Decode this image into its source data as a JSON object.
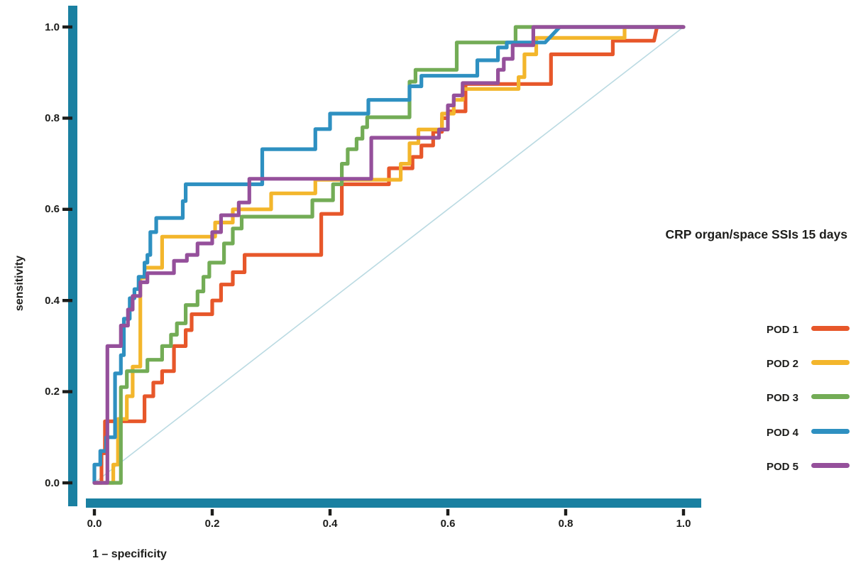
{
  "figure": {
    "title": "CRP organ/space SSIs 15 days",
    "x_axis_label": "1 – specificity",
    "y_axis_label": "sensitivity",
    "axis_color": "#1a80a1",
    "tick_color": "#1d1d1b",
    "text_color": "#1d1d1b",
    "diagonal_color": "#badae2",
    "x_tick_labels": [
      "0.0",
      "0.2",
      "0.4",
      "0.6",
      "0.8",
      "1.0"
    ],
    "y_tick_labels": [
      "1.0",
      "0.8",
      "0.6",
      "0.4",
      "0.2",
      "0.0"
    ]
  },
  "legend": {
    "items": [
      {
        "label": "POD 1",
        "color": "#e7572a"
      },
      {
        "label": "POD 2",
        "color": "#f3b62c"
      },
      {
        "label": "POD 3",
        "color": "#73ac56"
      },
      {
        "label": "POD 4",
        "color": "#2e90c1"
      },
      {
        "label": "POD 5",
        "color": "#95509b"
      }
    ]
  },
  "chart_data": {
    "type": "line",
    "subtype": "roc-step-curves",
    "title": "CRP organ/space SSIs 15 days",
    "xlabel": "1 – specificity",
    "ylabel": "sensitivity",
    "xlim": [
      0,
      1
    ],
    "ylim": [
      0,
      1
    ],
    "x_ticks": [
      0.0,
      0.2,
      0.4,
      0.6,
      0.8,
      1.0
    ],
    "y_ticks": [
      0.0,
      0.2,
      0.4,
      0.6,
      0.8,
      1.0
    ],
    "grid": false,
    "legend_position": "right",
    "reference_line": {
      "from": [
        0,
        0
      ],
      "to": [
        1,
        1
      ],
      "color": "#badae2"
    },
    "series": [
      {
        "name": "POD 1",
        "color": "#e7572a",
        "points": [
          [
            0,
            0
          ],
          [
            0.012,
            0
          ],
          [
            0.012,
            0.065
          ],
          [
            0.018,
            0.065
          ],
          [
            0.018,
            0.135
          ],
          [
            0.085,
            0.135
          ],
          [
            0.085,
            0.19
          ],
          [
            0.1,
            0.19
          ],
          [
            0.1,
            0.22
          ],
          [
            0.115,
            0.22
          ],
          [
            0.115,
            0.245
          ],
          [
            0.135,
            0.245
          ],
          [
            0.135,
            0.3
          ],
          [
            0.155,
            0.3
          ],
          [
            0.155,
            0.335
          ],
          [
            0.165,
            0.335
          ],
          [
            0.165,
            0.37
          ],
          [
            0.2,
            0.37
          ],
          [
            0.2,
            0.4
          ],
          [
            0.215,
            0.4
          ],
          [
            0.215,
            0.435
          ],
          [
            0.235,
            0.435
          ],
          [
            0.235,
            0.462
          ],
          [
            0.255,
            0.462
          ],
          [
            0.255,
            0.5
          ],
          [
            0.385,
            0.5
          ],
          [
            0.385,
            0.59
          ],
          [
            0.42,
            0.59
          ],
          [
            0.42,
            0.655
          ],
          [
            0.5,
            0.655
          ],
          [
            0.5,
            0.69
          ],
          [
            0.54,
            0.69
          ],
          [
            0.54,
            0.715
          ],
          [
            0.555,
            0.715
          ],
          [
            0.555,
            0.74
          ],
          [
            0.575,
            0.74
          ],
          [
            0.575,
            0.77
          ],
          [
            0.59,
            0.77
          ],
          [
            0.59,
            0.8
          ],
          [
            0.6,
            0.8
          ],
          [
            0.6,
            0.815
          ],
          [
            0.63,
            0.815
          ],
          [
            0.63,
            0.875
          ],
          [
            0.775,
            0.875
          ],
          [
            0.775,
            0.94
          ],
          [
            0.88,
            0.94
          ],
          [
            0.88,
            0.97
          ],
          [
            0.95,
            0.97
          ],
          [
            0.955,
            1.0
          ],
          [
            1.0,
            1.0
          ]
        ]
      },
      {
        "name": "POD 2",
        "color": "#f3b62c",
        "points": [
          [
            0,
            0
          ],
          [
            0.032,
            0
          ],
          [
            0.032,
            0.04
          ],
          [
            0.04,
            0.04
          ],
          [
            0.04,
            0.14
          ],
          [
            0.055,
            0.14
          ],
          [
            0.055,
            0.19
          ],
          [
            0.065,
            0.19
          ],
          [
            0.065,
            0.255
          ],
          [
            0.078,
            0.255
          ],
          [
            0.078,
            0.45
          ],
          [
            0.085,
            0.45
          ],
          [
            0.085,
            0.472
          ],
          [
            0.115,
            0.472
          ],
          [
            0.115,
            0.54
          ],
          [
            0.205,
            0.54
          ],
          [
            0.205,
            0.571
          ],
          [
            0.235,
            0.571
          ],
          [
            0.235,
            0.6
          ],
          [
            0.3,
            0.6
          ],
          [
            0.3,
            0.635
          ],
          [
            0.375,
            0.635
          ],
          [
            0.375,
            0.665
          ],
          [
            0.52,
            0.665
          ],
          [
            0.52,
            0.7
          ],
          [
            0.535,
            0.7
          ],
          [
            0.535,
            0.745
          ],
          [
            0.55,
            0.745
          ],
          [
            0.55,
            0.775
          ],
          [
            0.59,
            0.775
          ],
          [
            0.59,
            0.81
          ],
          [
            0.61,
            0.81
          ],
          [
            0.61,
            0.84
          ],
          [
            0.625,
            0.84
          ],
          [
            0.625,
            0.864
          ],
          [
            0.72,
            0.864
          ],
          [
            0.72,
            0.89
          ],
          [
            0.73,
            0.89
          ],
          [
            0.73,
            0.94
          ],
          [
            0.75,
            0.94
          ],
          [
            0.75,
            0.976
          ],
          [
            0.9,
            0.976
          ],
          [
            0.9,
            1.0
          ],
          [
            1.0,
            1.0
          ]
        ]
      },
      {
        "name": "POD 3",
        "color": "#73ac56",
        "points": [
          [
            0,
            0
          ],
          [
            0.045,
            0
          ],
          [
            0.045,
            0.21
          ],
          [
            0.055,
            0.21
          ],
          [
            0.055,
            0.245
          ],
          [
            0.09,
            0.245
          ],
          [
            0.09,
            0.27
          ],
          [
            0.115,
            0.27
          ],
          [
            0.115,
            0.3
          ],
          [
            0.13,
            0.3
          ],
          [
            0.13,
            0.325
          ],
          [
            0.14,
            0.325
          ],
          [
            0.14,
            0.35
          ],
          [
            0.155,
            0.35
          ],
          [
            0.155,
            0.39
          ],
          [
            0.175,
            0.39
          ],
          [
            0.175,
            0.42
          ],
          [
            0.185,
            0.42
          ],
          [
            0.185,
            0.452
          ],
          [
            0.195,
            0.452
          ],
          [
            0.195,
            0.483
          ],
          [
            0.22,
            0.483
          ],
          [
            0.22,
            0.525
          ],
          [
            0.235,
            0.525
          ],
          [
            0.235,
            0.558
          ],
          [
            0.25,
            0.558
          ],
          [
            0.25,
            0.584
          ],
          [
            0.37,
            0.584
          ],
          [
            0.37,
            0.62
          ],
          [
            0.405,
            0.62
          ],
          [
            0.405,
            0.655
          ],
          [
            0.42,
            0.655
          ],
          [
            0.42,
            0.7
          ],
          [
            0.43,
            0.7
          ],
          [
            0.43,
            0.732
          ],
          [
            0.445,
            0.732
          ],
          [
            0.445,
            0.755
          ],
          [
            0.455,
            0.755
          ],
          [
            0.455,
            0.78
          ],
          [
            0.463,
            0.78
          ],
          [
            0.463,
            0.802
          ],
          [
            0.535,
            0.802
          ],
          [
            0.535,
            0.88
          ],
          [
            0.545,
            0.88
          ],
          [
            0.545,
            0.906
          ],
          [
            0.615,
            0.906
          ],
          [
            0.615,
            0.966
          ],
          [
            0.715,
            0.966
          ],
          [
            0.715,
            1.0
          ],
          [
            1.0,
            1.0
          ]
        ]
      },
      {
        "name": "POD 4",
        "color": "#2e90c1",
        "points": [
          [
            0,
            0
          ],
          [
            0,
            0.04
          ],
          [
            0.01,
            0.04
          ],
          [
            0.01,
            0.07
          ],
          [
            0.02,
            0.07
          ],
          [
            0.02,
            0.1
          ],
          [
            0.035,
            0.1
          ],
          [
            0.035,
            0.24
          ],
          [
            0.045,
            0.24
          ],
          [
            0.045,
            0.28
          ],
          [
            0.05,
            0.28
          ],
          [
            0.05,
            0.36
          ],
          [
            0.06,
            0.36
          ],
          [
            0.06,
            0.405
          ],
          [
            0.068,
            0.405
          ],
          [
            0.068,
            0.425
          ],
          [
            0.075,
            0.425
          ],
          [
            0.075,
            0.452
          ],
          [
            0.085,
            0.452
          ],
          [
            0.085,
            0.483
          ],
          [
            0.09,
            0.483
          ],
          [
            0.09,
            0.5
          ],
          [
            0.095,
            0.5
          ],
          [
            0.095,
            0.55
          ],
          [
            0.105,
            0.55
          ],
          [
            0.105,
            0.581
          ],
          [
            0.15,
            0.581
          ],
          [
            0.15,
            0.618
          ],
          [
            0.155,
            0.618
          ],
          [
            0.155,
            0.655
          ],
          [
            0.285,
            0.655
          ],
          [
            0.285,
            0.732
          ],
          [
            0.375,
            0.732
          ],
          [
            0.375,
            0.776
          ],
          [
            0.4,
            0.776
          ],
          [
            0.4,
            0.81
          ],
          [
            0.465,
            0.81
          ],
          [
            0.465,
            0.84
          ],
          [
            0.535,
            0.84
          ],
          [
            0.535,
            0.87
          ],
          [
            0.555,
            0.87
          ],
          [
            0.555,
            0.893
          ],
          [
            0.65,
            0.893
          ],
          [
            0.65,
            0.927
          ],
          [
            0.685,
            0.927
          ],
          [
            0.685,
            0.955
          ],
          [
            0.7,
            0.955
          ],
          [
            0.7,
            0.966
          ],
          [
            0.765,
            0.966
          ],
          [
            0.79,
            1.0
          ],
          [
            1.0,
            1.0
          ]
        ]
      },
      {
        "name": "POD 5",
        "color": "#95509b",
        "points": [
          [
            0,
            0
          ],
          [
            0.022,
            0
          ],
          [
            0.022,
            0.3
          ],
          [
            0.045,
            0.3
          ],
          [
            0.045,
            0.345
          ],
          [
            0.057,
            0.345
          ],
          [
            0.057,
            0.38
          ],
          [
            0.065,
            0.38
          ],
          [
            0.065,
            0.41
          ],
          [
            0.078,
            0.41
          ],
          [
            0.078,
            0.44
          ],
          [
            0.09,
            0.44
          ],
          [
            0.09,
            0.46
          ],
          [
            0.135,
            0.46
          ],
          [
            0.135,
            0.487
          ],
          [
            0.157,
            0.487
          ],
          [
            0.157,
            0.5
          ],
          [
            0.175,
            0.5
          ],
          [
            0.175,
            0.525
          ],
          [
            0.2,
            0.525
          ],
          [
            0.2,
            0.55
          ],
          [
            0.215,
            0.55
          ],
          [
            0.215,
            0.587
          ],
          [
            0.245,
            0.587
          ],
          [
            0.245,
            0.615
          ],
          [
            0.263,
            0.615
          ],
          [
            0.263,
            0.667
          ],
          [
            0.47,
            0.667
          ],
          [
            0.47,
            0.757
          ],
          [
            0.585,
            0.757
          ],
          [
            0.585,
            0.775
          ],
          [
            0.6,
            0.775
          ],
          [
            0.6,
            0.828
          ],
          [
            0.61,
            0.828
          ],
          [
            0.61,
            0.85
          ],
          [
            0.625,
            0.85
          ],
          [
            0.625,
            0.877
          ],
          [
            0.685,
            0.877
          ],
          [
            0.685,
            0.906
          ],
          [
            0.695,
            0.906
          ],
          [
            0.695,
            0.93
          ],
          [
            0.71,
            0.93
          ],
          [
            0.71,
            0.96
          ],
          [
            0.745,
            0.96
          ],
          [
            0.745,
            1.0
          ],
          [
            1.0,
            1.0
          ]
        ]
      }
    ]
  }
}
